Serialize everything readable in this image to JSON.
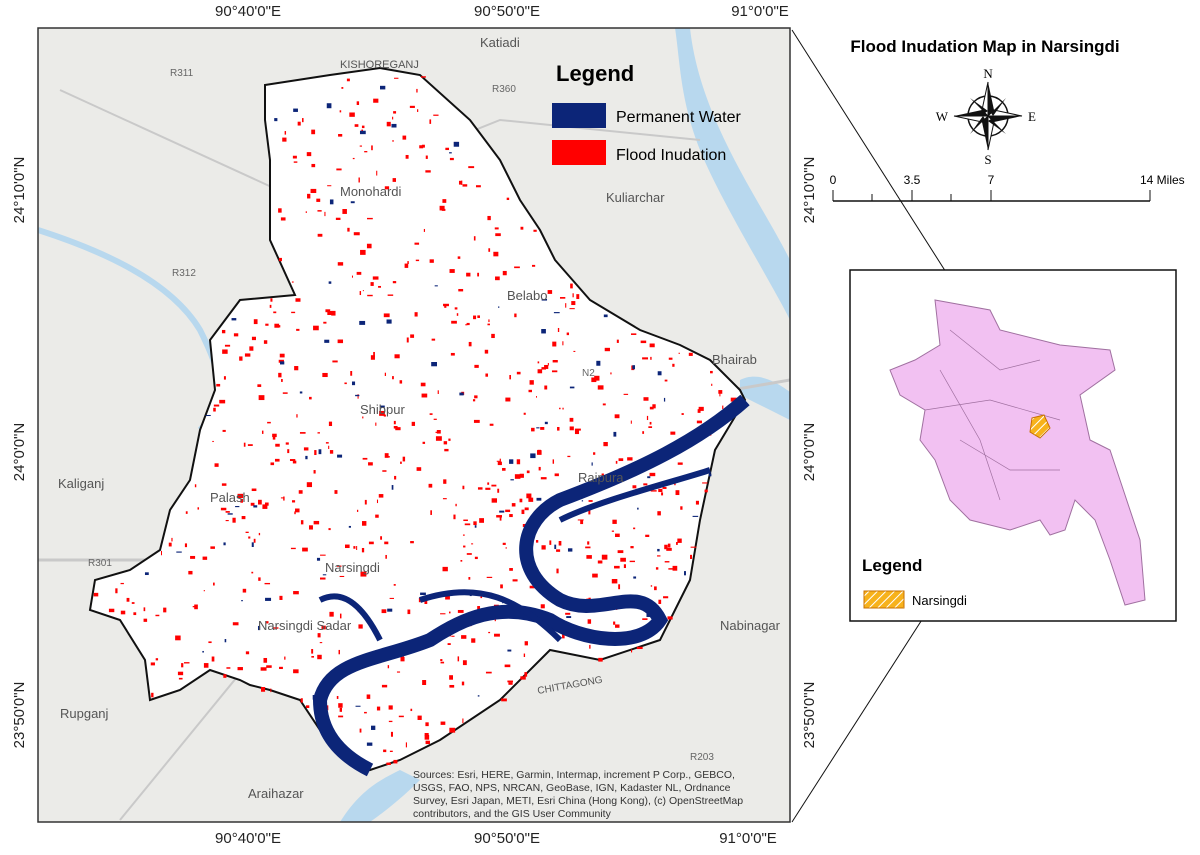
{
  "title": "Flood Inudation Map in Narsingdi",
  "map": {
    "top_labels": [
      "90°40'0\"E",
      "90°50'0\"E",
      "91°0'0\"E"
    ],
    "bottom_labels": [
      "90°40'0\"E",
      "90°50'0\"E",
      "91°0'0\"E"
    ],
    "left_labels": [
      "24°10'0\"N",
      "24°0'0\"N",
      "23°50'0\"N"
    ],
    "right_labels": [
      "24°10'0\"N",
      "24°0'0\"N",
      "23°50'0\"N"
    ],
    "places": [
      "Katiadi",
      "KISHOREGANJ",
      "Kuliarchar",
      "Monohardi",
      "Belabo",
      "Bhairab",
      "Shibpur",
      "Raipura",
      "Kaliganj",
      "Palash",
      "Narsingdi",
      "Narsingdi Sadar",
      "Nabinagar",
      "Rupganj",
      "Araihazar",
      "CHITTAGONG"
    ],
    "roads": [
      "R311",
      "R360",
      "R312",
      "N2",
      "R301",
      "R203"
    ],
    "sources": [
      "Sources: Esri, HERE, Garmin, Intermap, increment P Corp., GEBCO,",
      "USGS, FAO, NPS, NRCAN, GeoBase, IGN, Kadaster NL, Ordnance",
      "Survey, Esri Japan, METI, Esri China (Hong Kong), (c) OpenStreetMap",
      "contributors, and the GIS User Community"
    ]
  },
  "legend": {
    "title": "Legend",
    "items": [
      "Permanent Water",
      "Flood Inudation"
    ]
  },
  "compass": [
    "N",
    "E",
    "S",
    "W"
  ],
  "scale_bar": [
    "0",
    "3.5",
    "7",
    "14 Miles"
  ],
  "inset": {
    "legend_title": "Legend",
    "item": "Narsingdi"
  }
}
